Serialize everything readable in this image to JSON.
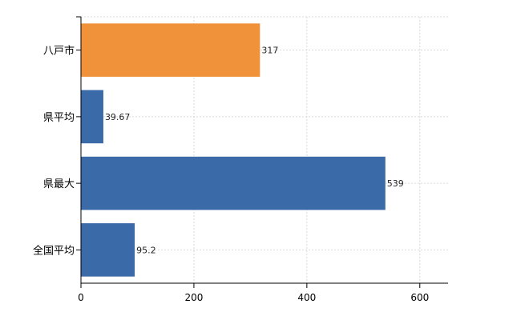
{
  "chart_data": {
    "type": "bar",
    "orientation": "horizontal",
    "categories": [
      "八戸市",
      "県平均",
      "県最大",
      "全国平均"
    ],
    "values": [
      317,
      39.67,
      539,
      95.2
    ],
    "value_labels": [
      "317",
      "39.67",
      "539",
      "95.2"
    ],
    "colors": [
      "#f0923a",
      "#3a6aa8",
      "#3a6aa8",
      "#3a6aa8"
    ],
    "xlim": [
      0,
      650
    ],
    "xticks": [
      0,
      200,
      400,
      600
    ],
    "xtick_labels": [
      "0",
      "200",
      "400",
      "600"
    ],
    "grid": true,
    "title": "",
    "xlabel": "",
    "ylabel": ""
  }
}
